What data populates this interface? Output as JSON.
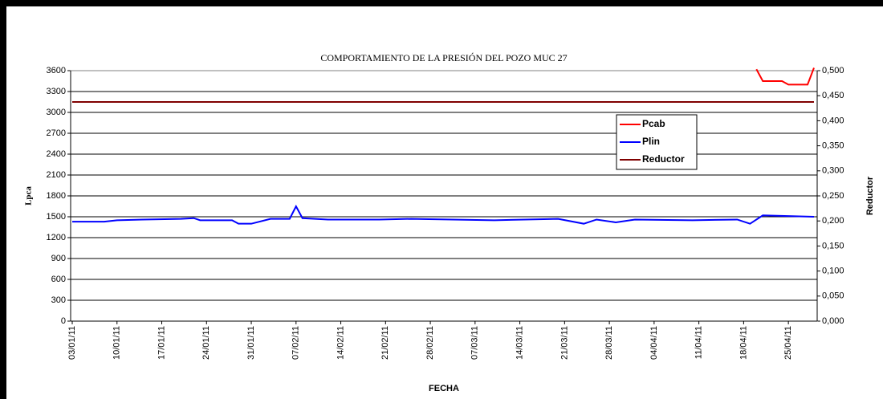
{
  "chart_data": {
    "type": "line",
    "title": "COMPORTAMIENTO DE LA PRESIÓN DEL POZO MUC 27",
    "x_label": "FECHA",
    "y_label": "Lpca",
    "y2_label": "Reductor",
    "xlim": [
      "03/01/11",
      "29/04/11"
    ],
    "xticks": [
      "03/01/11",
      "10/01/11",
      "17/01/11",
      "24/01/11",
      "31/01/11",
      "07/02/11",
      "14/02/11",
      "21/02/11",
      "28/02/11",
      "07/03/11",
      "14/03/11",
      "21/03/11",
      "28/03/11",
      "04/04/11",
      "11/04/11",
      "18/04/11",
      "25/04/11"
    ],
    "ylim": [
      0,
      3600
    ],
    "yticks": [
      0,
      300,
      600,
      900,
      1200,
      1500,
      1800,
      2100,
      2400,
      2700,
      3000,
      3300,
      3600
    ],
    "y2lim": [
      0,
      0.5
    ],
    "y2ticks": [
      {
        "value": 0,
        "label": "0,000"
      },
      {
        "value": 0.05,
        "label": "0,050"
      },
      {
        "value": 0.1,
        "label": "0,100"
      },
      {
        "value": 0.15,
        "label": "0,150"
      },
      {
        "value": 0.2,
        "label": "0,200"
      },
      {
        "value": 0.25,
        "label": "0,250"
      },
      {
        "value": 0.3,
        "label": "0,300"
      },
      {
        "value": 0.35,
        "label": "0,350"
      },
      {
        "value": 0.4,
        "label": "0,400"
      },
      {
        "value": 0.45,
        "label": "0,450"
      },
      {
        "value": 0.5,
        "label": "0,500"
      }
    ],
    "grid": true,
    "legend": "right",
    "series": [
      {
        "name": "Pcab",
        "color": "#ff0000",
        "x": [
          "20/04/11",
          "21/04/11",
          "24/04/11",
          "25/04/11",
          "28/04/11",
          "29/04/11"
        ],
        "values": [
          3620,
          3450,
          3450,
          3400,
          3400,
          3640
        ]
      },
      {
        "name": "Plin",
        "color": "#0000ff",
        "x": [
          "03/01/11",
          "08/01/11",
          "10/01/11",
          "14/01/11",
          "20/01/11",
          "22/01/11",
          "23/01/11",
          "28/01/11",
          "29/01/11",
          "31/01/11",
          "03/02/11",
          "06/02/11",
          "07/02/11",
          "08/02/11",
          "12/02/11",
          "20/02/11",
          "25/02/11",
          "10/03/11",
          "20/03/11",
          "24/03/11",
          "26/03/11",
          "29/03/11",
          "01/04/11",
          "10/04/11",
          "17/04/11",
          "19/04/11",
          "21/04/11",
          "29/04/11"
        ],
        "values": [
          1430,
          1430,
          1450,
          1460,
          1470,
          1480,
          1450,
          1450,
          1400,
          1400,
          1470,
          1470,
          1650,
          1480,
          1460,
          1460,
          1470,
          1450,
          1470,
          1400,
          1460,
          1420,
          1460,
          1450,
          1460,
          1400,
          1520,
          1500
        ]
      },
      {
        "name": "Reductor",
        "color": "#800000",
        "axis": "y2",
        "x": [
          "03/01/11",
          "29/04/11"
        ],
        "values": [
          0.4375,
          0.4375
        ]
      }
    ]
  }
}
